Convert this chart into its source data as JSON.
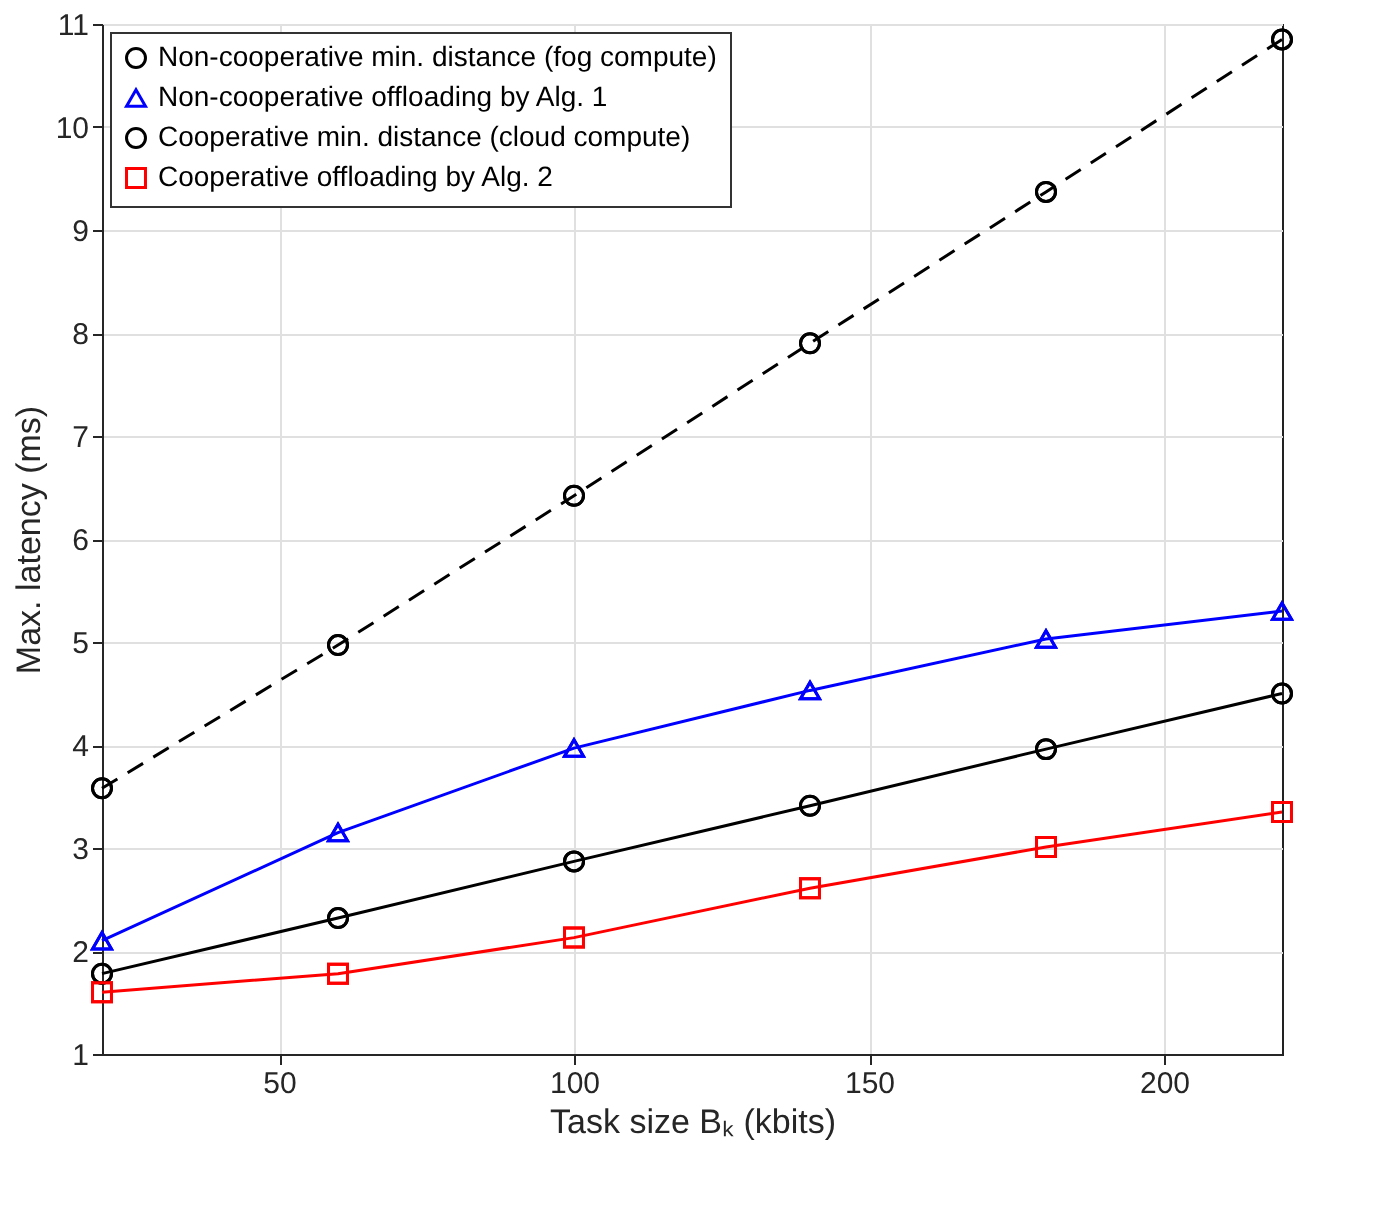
{
  "chart_data": {
    "type": "line",
    "xlabel": "Task size Bₖ (kbits)",
    "ylabel": "Max. latency (ms)",
    "x": [
      20,
      60,
      100,
      140,
      180,
      220
    ],
    "xlim": [
      20,
      220
    ],
    "xticks": [
      50,
      100,
      150,
      200
    ],
    "ylim": [
      1,
      11
    ],
    "yticks": [
      1,
      2,
      3,
      4,
      5,
      6,
      7,
      8,
      9,
      10,
      11
    ],
    "grid": true,
    "legend": "top left",
    "series": [
      {
        "name": "Non-cooperative min. distance (fog compute)",
        "color": "#000000",
        "marker": "circle",
        "line_style": "dashed",
        "values": [
          3.58,
          4.97,
          6.42,
          7.9,
          9.37,
          10.85
        ]
      },
      {
        "name": "Non-cooperative offloading by Alg. 1",
        "color": "#0000ff",
        "marker": "triangle",
        "line_style": "solid",
        "values": [
          2.1,
          3.15,
          3.97,
          4.53,
          5.03,
          5.3
        ]
      },
      {
        "name": "Cooperative min. distance (cloud compute)",
        "color": "#000000",
        "marker": "circle",
        "line_style": "solid",
        "values": [
          1.78,
          2.32,
          2.87,
          3.41,
          3.96,
          4.5
        ]
      },
      {
        "name": "Cooperative offloading by Alg. 2",
        "color": "#ff0000",
        "marker": "square",
        "line_style": "solid",
        "values": [
          1.6,
          1.78,
          2.13,
          2.61,
          3.01,
          3.35
        ]
      }
    ]
  }
}
